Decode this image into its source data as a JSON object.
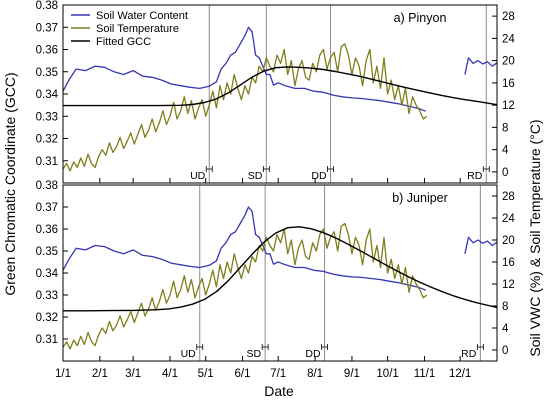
{
  "figure": {
    "xlabel": "Date",
    "ylabel_left": "Green Chromatic Coordinate (GCC)",
    "ylabel_right": "Soil VWC (%) & Soil Temperature (°C)"
  },
  "chart_data": [
    {
      "type": "line",
      "panel_label": "a) Pinyon",
      "x_ticks": [
        "1/1",
        "2/1",
        "3/1",
        "4/1",
        "5/1",
        "6/1",
        "7/1",
        "8/1",
        "9/1",
        "10/1",
        "11/1",
        "12/1"
      ],
      "x_tick_day_of_year": [
        1,
        32,
        60,
        91,
        121,
        152,
        182,
        213,
        244,
        274,
        305,
        335
      ],
      "xlim_day_of_year": [
        1,
        366
      ],
      "ylim_left": [
        0.3,
        0.38
      ],
      "yticks_left": [
        0.31,
        0.32,
        0.33,
        0.34,
        0.35,
        0.36,
        0.37,
        0.38
      ],
      "ylim_right": [
        -2,
        30
      ],
      "yticks_right": [
        0,
        4,
        8,
        12,
        16,
        20,
        24,
        28
      ],
      "grid": false,
      "legend_position": "top-left",
      "phenology_dates": [
        {
          "label": "UD",
          "day_of_year": 124
        },
        {
          "label": "SD",
          "day_of_year": 172
        },
        {
          "label": "DD",
          "day_of_year": 226
        },
        {
          "label": "RD",
          "day_of_year": 357
        }
      ],
      "series": [
        {
          "name": "Soil Water Content",
          "axis": "right",
          "color": "#3636b4",
          "x": [
            1,
            6,
            12,
            20,
            28,
            36,
            44,
            52,
            60,
            68,
            76,
            84,
            92,
            100,
            108,
            116,
            124,
            130,
            134,
            138,
            142,
            146,
            150,
            154,
            157,
            160,
            163,
            166,
            169,
            172,
            175,
            178,
            182,
            188,
            196,
            204,
            212,
            220,
            228,
            236,
            244,
            252,
            260,
            268,
            276,
            284,
            292,
            300,
            306
          ],
          "y": [
            14.5,
            16.5,
            18.5,
            18.2,
            19.0,
            18.8,
            18.0,
            17.5,
            18.2,
            17.2,
            17.0,
            16.5,
            15.8,
            15.5,
            15.2,
            15.0,
            15.4,
            16.2,
            18.5,
            19.5,
            21.0,
            21.5,
            23.0,
            24.5,
            26.0,
            25.2,
            21.0,
            20.5,
            19.0,
            17.5,
            17.5,
            15.6,
            16.0,
            15.5,
            15.0,
            15.0,
            14.5,
            14.3,
            13.8,
            13.5,
            13.3,
            13.2,
            13.0,
            12.8,
            12.5,
            12.2,
            11.8,
            11.4,
            10.9
          ]
        },
        {
          "name": "Soil Water Content",
          "axis": "right",
          "color": "#3636b4",
          "x": [
            339,
            342,
            346,
            350,
            354,
            358,
            362,
            366
          ],
          "y": [
            17.5,
            20.5,
            19.5,
            20.0,
            19.4,
            19.8,
            19.0,
            19.6
          ]
        },
        {
          "name": "Soil Temperature",
          "axis": "right",
          "color": "#7e7e1a",
          "x": [
            1,
            4,
            7,
            10,
            13,
            16,
            19,
            22,
            25,
            28,
            31,
            34,
            37,
            40,
            43,
            46,
            49,
            52,
            55,
            58,
            61,
            64,
            67,
            70,
            73,
            76,
            79,
            82,
            85,
            88,
            91,
            94,
            97,
            100,
            103,
            106,
            109,
            112,
            115,
            118,
            121,
            124,
            127,
            130,
            133,
            136,
            139,
            142,
            145,
            148,
            151,
            154,
            157,
            160,
            163,
            166,
            169,
            172,
            175,
            178,
            181,
            184,
            187,
            190,
            193,
            196,
            199,
            202,
            205,
            208,
            211,
            214,
            217,
            220,
            223,
            226,
            229,
            232,
            235,
            238,
            241,
            244,
            247,
            250,
            253,
            256,
            259,
            262,
            265,
            268,
            271,
            274,
            277,
            280,
            283,
            286,
            289,
            292,
            295,
            298,
            301,
            304,
            307
          ],
          "y": [
            0.5,
            1.5,
            0.2,
            1.8,
            0.8,
            2.5,
            1.0,
            3.2,
            1.5,
            0.8,
            2.8,
            4.0,
            3.0,
            5.2,
            3.5,
            4.5,
            6.2,
            4.2,
            5.5,
            7.0,
            5.0,
            6.8,
            8.5,
            6.2,
            7.5,
            9.5,
            7.2,
            8.8,
            11.0,
            8.5,
            10.0,
            12.5,
            9.5,
            11.0,
            13.5,
            10.5,
            12.8,
            9.5,
            11.5,
            13.0,
            10.0,
            12.0,
            14.5,
            11.5,
            15.5,
            13.0,
            16.0,
            14.0,
            17.5,
            15.0,
            13.0,
            15.5,
            14.0,
            17.0,
            16.0,
            19.0,
            18.0,
            20.5,
            19.0,
            18.0,
            21.0,
            19.5,
            22.0,
            17.5,
            20.0,
            15.5,
            18.5,
            20.0,
            17.0,
            16.5,
            19.5,
            18.0,
            21.0,
            22.0,
            18.5,
            20.5,
            21.5,
            18.0,
            22.5,
            23.0,
            21.0,
            17.5,
            20.5,
            19.0,
            15.5,
            20.0,
            22.0,
            16.0,
            19.0,
            15.0,
            20.5,
            14.0,
            16.5,
            13.0,
            15.5,
            12.0,
            15.0,
            10.5,
            13.5,
            12.0,
            11.0,
            9.5,
            10.0
          ]
        },
        {
          "name": "Fitted GCC",
          "axis": "left",
          "color": "#000000",
          "x": [
            1,
            20,
            40,
            60,
            80,
            100,
            110,
            120,
            130,
            140,
            150,
            160,
            170,
            180,
            190,
            200,
            210,
            220,
            230,
            240,
            250,
            260,
            270,
            280,
            290,
            300,
            310,
            320,
            330,
            340,
            350,
            366
          ],
          "y": [
            0.3348,
            0.3348,
            0.3348,
            0.3348,
            0.3348,
            0.3349,
            0.3353,
            0.3362,
            0.3378,
            0.3405,
            0.344,
            0.3476,
            0.3503,
            0.3518,
            0.3522,
            0.352,
            0.3516,
            0.351,
            0.3501,
            0.3491,
            0.348,
            0.3467,
            0.3454,
            0.3441,
            0.3428,
            0.3416,
            0.3404,
            0.3393,
            0.3383,
            0.3374,
            0.3366,
            0.3352
          ]
        }
      ]
    },
    {
      "type": "line",
      "panel_label": "b) Juniper",
      "x_ticks": [
        "1/1",
        "2/1",
        "3/1",
        "4/1",
        "5/1",
        "6/1",
        "7/1",
        "8/1",
        "9/1",
        "10/1",
        "11/1",
        "12/1"
      ],
      "x_tick_day_of_year": [
        1,
        32,
        60,
        91,
        121,
        152,
        182,
        213,
        244,
        274,
        305,
        335
      ],
      "xlim_day_of_year": [
        1,
        366
      ],
      "ylim_left": [
        0.3,
        0.38
      ],
      "yticks_left": [
        0.31,
        0.32,
        0.33,
        0.34,
        0.35,
        0.36,
        0.37,
        0.38
      ],
      "ylim_right": [
        -2,
        30
      ],
      "yticks_right": [
        0,
        4,
        8,
        12,
        16,
        20,
        24,
        28
      ],
      "grid": false,
      "phenology_dates": [
        {
          "label": "UD",
          "day_of_year": 116
        },
        {
          "label": "SD",
          "day_of_year": 171
        },
        {
          "label": "DD",
          "day_of_year": 221
        },
        {
          "label": "RD",
          "day_of_year": 352
        }
      ],
      "series": [
        {
          "name": "Soil Water Content",
          "axis": "right",
          "color": "#3636b4",
          "x": [
            1,
            6,
            12,
            20,
            28,
            36,
            44,
            52,
            60,
            68,
            76,
            84,
            92,
            100,
            108,
            116,
            124,
            130,
            134,
            138,
            142,
            146,
            150,
            154,
            157,
            160,
            163,
            166,
            169,
            172,
            175,
            178,
            182,
            188,
            196,
            204,
            212,
            220,
            228,
            236,
            244,
            252,
            260,
            268,
            276,
            284,
            292,
            300,
            306
          ],
          "y": [
            14.5,
            16.5,
            18.5,
            18.2,
            19.0,
            18.8,
            18.0,
            17.5,
            18.2,
            17.2,
            17.0,
            16.5,
            15.8,
            15.5,
            15.2,
            15.0,
            15.4,
            16.2,
            18.5,
            19.5,
            21.0,
            21.5,
            23.0,
            24.5,
            26.0,
            25.2,
            21.0,
            20.5,
            19.0,
            17.5,
            17.5,
            15.6,
            16.0,
            15.5,
            15.0,
            15.0,
            14.5,
            14.3,
            13.8,
            13.5,
            13.3,
            13.2,
            13.0,
            12.8,
            12.5,
            12.2,
            11.8,
            11.4,
            10.9
          ]
        },
        {
          "name": "Soil Water Content",
          "axis": "right",
          "color": "#3636b4",
          "x": [
            339,
            342,
            346,
            350,
            354,
            358,
            362,
            366
          ],
          "y": [
            17.5,
            20.5,
            19.5,
            20.0,
            19.4,
            19.8,
            19.0,
            19.6
          ]
        },
        {
          "name": "Soil Temperature",
          "axis": "right",
          "color": "#7e7e1a",
          "x": [
            1,
            4,
            7,
            10,
            13,
            16,
            19,
            22,
            25,
            28,
            31,
            34,
            37,
            40,
            43,
            46,
            49,
            52,
            55,
            58,
            61,
            64,
            67,
            70,
            73,
            76,
            79,
            82,
            85,
            88,
            91,
            94,
            97,
            100,
            103,
            106,
            109,
            112,
            115,
            118,
            121,
            124,
            127,
            130,
            133,
            136,
            139,
            142,
            145,
            148,
            151,
            154,
            157,
            160,
            163,
            166,
            169,
            172,
            175,
            178,
            181,
            184,
            187,
            190,
            193,
            196,
            199,
            202,
            205,
            208,
            211,
            214,
            217,
            220,
            223,
            226,
            229,
            232,
            235,
            238,
            241,
            244,
            247,
            250,
            253,
            256,
            259,
            262,
            265,
            268,
            271,
            274,
            277,
            280,
            283,
            286,
            289,
            292,
            295,
            298,
            301,
            304,
            307
          ],
          "y": [
            0.5,
            1.5,
            0.2,
            1.8,
            0.8,
            2.5,
            1.0,
            3.2,
            1.5,
            0.8,
            2.8,
            4.0,
            3.0,
            5.2,
            3.5,
            4.5,
            6.2,
            4.2,
            5.5,
            7.0,
            5.0,
            6.8,
            8.5,
            6.2,
            7.5,
            9.5,
            7.2,
            8.8,
            11.0,
            8.5,
            10.0,
            12.5,
            9.5,
            11.0,
            13.5,
            10.5,
            12.8,
            9.5,
            11.5,
            13.0,
            10.0,
            12.0,
            14.5,
            11.5,
            15.5,
            13.0,
            16.0,
            14.0,
            17.5,
            15.0,
            13.0,
            15.5,
            14.0,
            17.0,
            16.0,
            19.0,
            18.0,
            20.5,
            19.0,
            18.0,
            21.0,
            19.5,
            22.0,
            17.5,
            20.0,
            15.5,
            18.5,
            20.0,
            17.0,
            16.5,
            19.5,
            18.0,
            21.0,
            22.0,
            18.5,
            20.5,
            21.5,
            18.0,
            22.5,
            23.0,
            21.0,
            17.5,
            20.5,
            19.0,
            15.5,
            20.0,
            22.0,
            16.0,
            19.0,
            15.0,
            20.5,
            14.0,
            16.5,
            13.0,
            15.5,
            12.0,
            15.0,
            10.5,
            13.5,
            12.0,
            11.0,
            9.5,
            10.0
          ]
        },
        {
          "name": "Fitted GCC",
          "axis": "left",
          "color": "#000000",
          "x": [
            1,
            20,
            40,
            60,
            80,
            90,
            100,
            110,
            120,
            130,
            140,
            150,
            160,
            170,
            180,
            190,
            200,
            210,
            220,
            230,
            240,
            250,
            260,
            270,
            280,
            290,
            300,
            310,
            320,
            330,
            340,
            350,
            366
          ],
          "y": [
            0.3228,
            0.3228,
            0.3229,
            0.323,
            0.3233,
            0.3237,
            0.3245,
            0.3258,
            0.328,
            0.3315,
            0.3365,
            0.3425,
            0.3485,
            0.354,
            0.3582,
            0.3606,
            0.361,
            0.3601,
            0.3583,
            0.356,
            0.3533,
            0.3504,
            0.3474,
            0.3444,
            0.3415,
            0.3387,
            0.3361,
            0.3337,
            0.3315,
            0.3295,
            0.3278,
            0.3263,
            0.3243
          ]
        }
      ]
    }
  ]
}
